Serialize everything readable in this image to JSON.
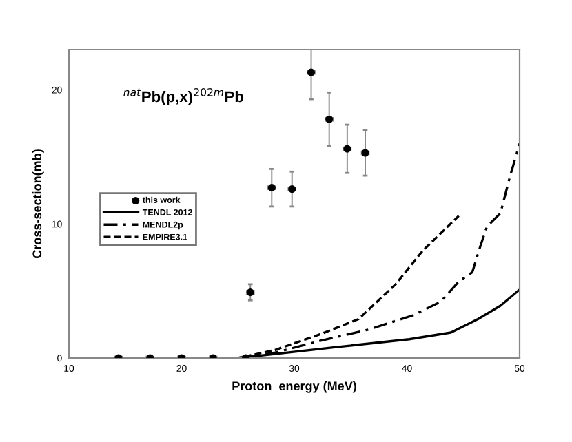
{
  "chart_data": {
    "type": "scatter",
    "xlabel": "Proton  energy (MeV)",
    "ylabel": "Cross-section(mb)",
    "annotations": [
      "$^{nat}$Pb(p,x)$^{202m}$Pb"
    ],
    "xlim": [
      10,
      50
    ],
    "ylim": [
      0,
      23
    ],
    "xticks": [
      10,
      20,
      30,
      40,
      50
    ],
    "yticks": [
      0,
      10,
      20
    ],
    "grid": false,
    "legend": "left",
    "series": [
      {
        "name": "this work",
        "marker": "circle",
        "color": "#000000",
        "x": [
          14.4,
          17.2,
          20.0,
          22.8,
          25.7,
          26.1,
          28.0,
          29.8,
          31.5,
          33.1,
          34.7,
          36.3
        ],
        "values": [
          0,
          0,
          0,
          0,
          0,
          4.9,
          12.7,
          12.6,
          21.3,
          17.8,
          15.6,
          15.3
        ],
        "errors": [
          null,
          null,
          null,
          null,
          null,
          0.6,
          1.4,
          1.3,
          2.0,
          2.0,
          1.8,
          1.7
        ],
        "xerrors": [
          0.3,
          0.3,
          0.3,
          0.3,
          0.3,
          0.3,
          0.3,
          0.3,
          0.3,
          0.3,
          0.3,
          0.3
        ]
      },
      {
        "name": "TENDL 2012",
        "type": "line",
        "line_style": "solid",
        "color": "#000000",
        "x": [
          10,
          25,
          28.3,
          33.6,
          40.2,
          43.9,
          46.3,
          48.3,
          50
        ],
        "values": [
          0,
          0,
          0.3,
          0.8,
          1.4,
          1.9,
          2.9,
          3.9,
          5.1
        ]
      },
      {
        "name": "MENDL2p",
        "type": "line",
        "line_style": "dashdot",
        "color": "#000000",
        "x": [
          10,
          25,
          28.3,
          32.4,
          36.5,
          40.6,
          43.0,
          44.6,
          45.8,
          46.5,
          47.1,
          48.3,
          49.1,
          50
        ],
        "values": [
          0,
          0,
          0.4,
          1.3,
          2.1,
          3.2,
          4.2,
          5.7,
          6.4,
          8.3,
          9.8,
          10.8,
          13.4,
          16.0
        ]
      },
      {
        "name": "EMPIRE3.1",
        "type": "line",
        "line_style": "dashed",
        "color": "#000000",
        "x": [
          10,
          25,
          28.3,
          32.4,
          35.7,
          39.0,
          41.4,
          44.6
        ],
        "values": [
          0,
          0,
          0.6,
          1.8,
          2.9,
          5.5,
          8.0,
          10.6
        ]
      }
    ]
  }
}
